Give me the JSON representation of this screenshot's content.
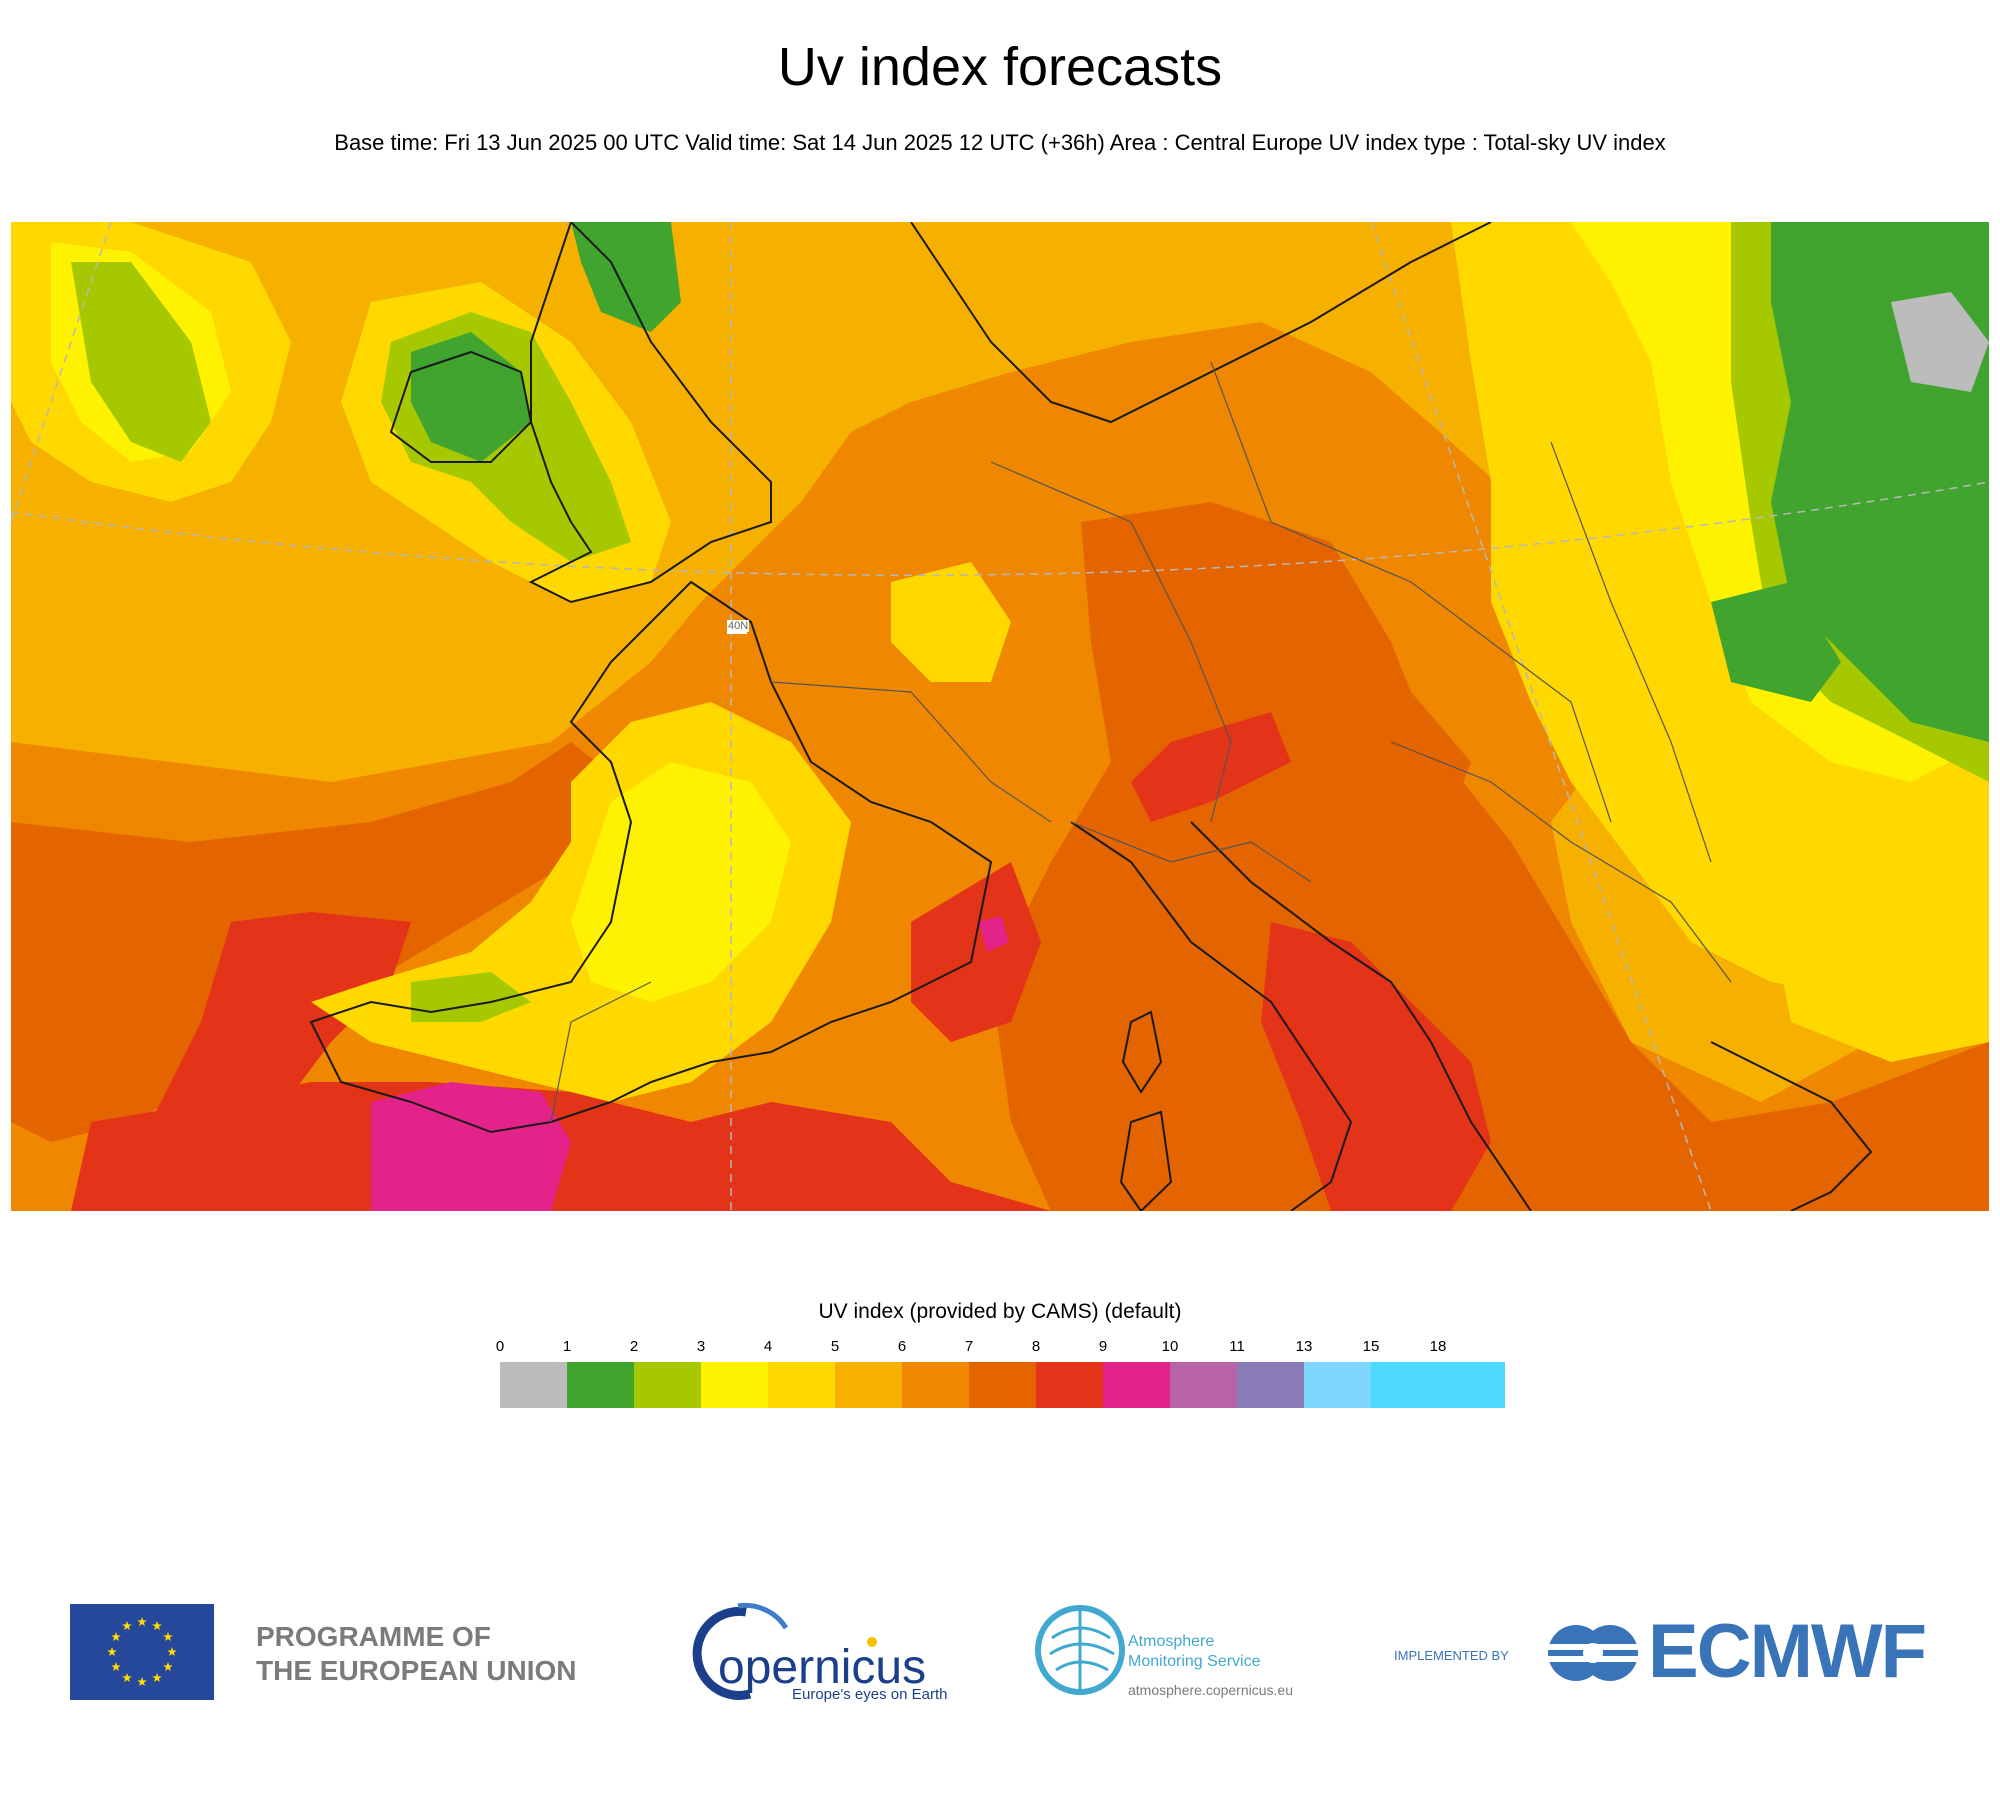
{
  "header": {
    "title": "Uv index forecasts",
    "subtitle": "Base time: Fri 13 Jun 2025 00 UTC Valid time: Sat 14 Jun 2025 12 UTC (+36h) Area : Central Europe UV index type : Total-sky UV index"
  },
  "map": {
    "region": "Central Europe",
    "inline_label": "40N",
    "colors": {
      "background": "#f5b000",
      "lt3": "#a6c800",
      "lt2": "#41a42f",
      "uv4": "#fff200",
      "uv5": "#ffd800",
      "uv6": "#f5b000",
      "uv7": "#ef8800",
      "uv8": "#e46400",
      "uv9": "#e33318",
      "uv10": "#e4238a",
      "coast": "#1a1a1a",
      "border": "#555555",
      "gridline": "#b8b8b8"
    }
  },
  "legend": {
    "title": "UV index (provided by CAMS) (default)",
    "ticks": [
      "0",
      "1",
      "2",
      "3",
      "4",
      "5",
      "6",
      "7",
      "8",
      "9",
      "10",
      "11",
      "13",
      "15",
      "18"
    ],
    "colors": [
      "#bcbcbc",
      "#41a42f",
      "#a6c800",
      "#fff200",
      "#ffd800",
      "#f5b000",
      "#ef8800",
      "#e46400",
      "#e33318",
      "#e4238a",
      "#b862a8",
      "#8a7ab6",
      "#7fd6ff",
      "#4dd9ff",
      "#4dd9ff"
    ]
  },
  "footer": {
    "eu_text_line1": "PROGRAMME OF",
    "eu_text_line2": "THE EUROPEAN UNION",
    "copernicus_name": "opernicus",
    "copernicus_tagline": "Europe's eyes on Earth",
    "ams_line1": "Atmosphere",
    "ams_line2": "Monitoring Service",
    "ams_url": "atmosphere.copernicus.eu",
    "implemented_by": "IMPLEMENTED BY",
    "ecmwf": "ECMWF"
  }
}
